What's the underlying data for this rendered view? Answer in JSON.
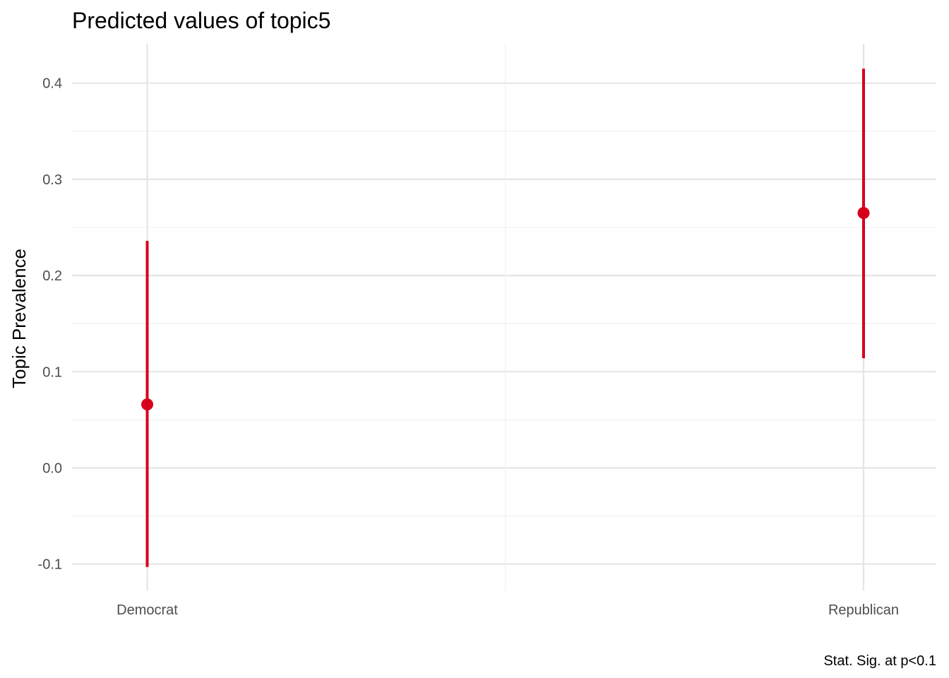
{
  "chart_data": {
    "type": "scatter",
    "title": "Predicted values of topic5",
    "xlabel": "",
    "ylabel": "Topic Prevalence",
    "caption": "Stat. Sig. at p<0.1",
    "categories": [
      "Democrat",
      "Republican"
    ],
    "series": [
      {
        "values": [
          0.066,
          0.265
        ],
        "lower": [
          -0.103,
          0.114
        ],
        "upper": [
          0.236,
          0.415
        ],
        "color": "#d7001c"
      }
    ],
    "ylim": [
      -0.12,
      0.44
    ],
    "yticks": [
      -0.1,
      0.0,
      0.1,
      0.2,
      0.3,
      0.4
    ],
    "ytick_labels": [
      "-0.1",
      "0.0",
      "0.1",
      "0.2",
      "0.3",
      "0.4"
    ],
    "grid": true,
    "legend": "none"
  }
}
